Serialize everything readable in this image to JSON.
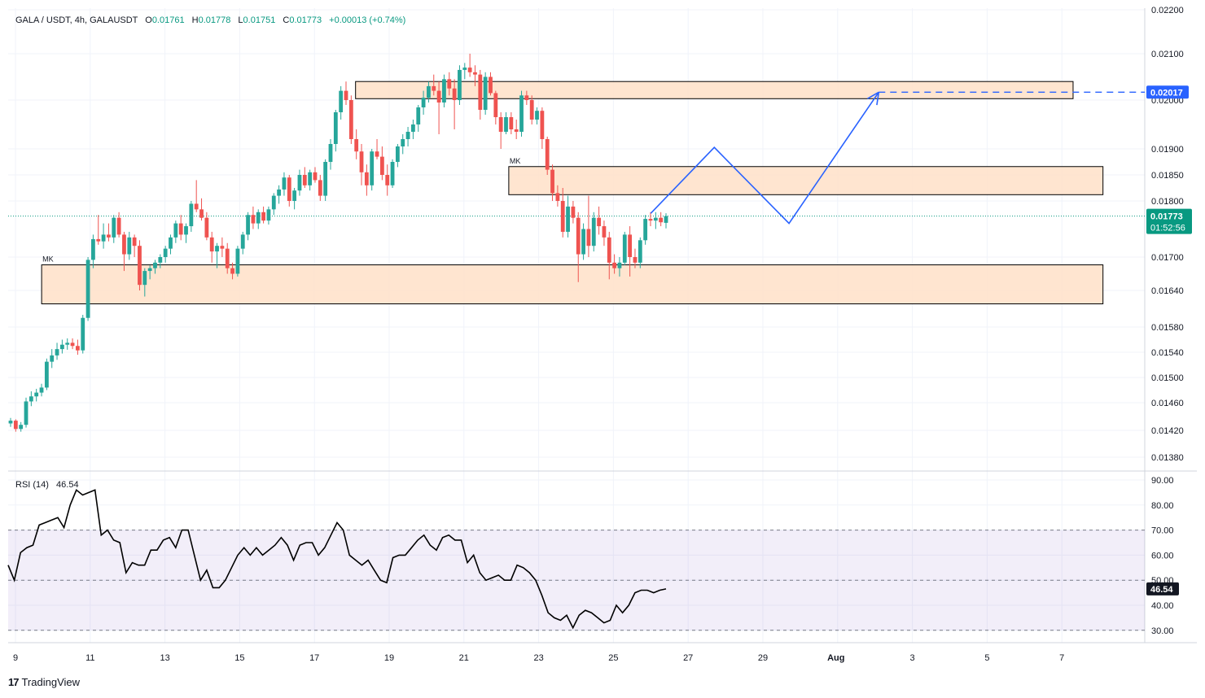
{
  "header": {
    "symbol": "GALA / USDT, 4h, GALAUSDT",
    "o_label": "O",
    "o_value": "0.01761",
    "h_label": "H",
    "h_value": "0.01778",
    "l_label": "L",
    "l_value": "0.01751",
    "c_label": "C",
    "c_value": "0.01773",
    "change": "+0.00013 (+0.74%)"
  },
  "price_tag": {
    "value": "0.01773",
    "countdown": "01:52:56"
  },
  "target_tag": "0.02017",
  "rsi_label": {
    "name": "RSI (14)",
    "value": "46.54"
  },
  "zone_labels": [
    "MK",
    "MK"
  ],
  "brand": {
    "logo": "17",
    "name": "TradingView"
  },
  "colors": {
    "up": "#26a69a",
    "down": "#ef5350",
    "zone_fill": "#ffe0c8",
    "projection": "#2962ff",
    "rsi_band": "#7e57c2",
    "rsi_line": "#000000"
  },
  "chart_data": [
    {
      "type": "candlestick",
      "title": "GALA / USDT, 4h, GALAUSDT",
      "x_ticks": [
        "9",
        "11",
        "13",
        "15",
        "17",
        "19",
        "21",
        "23",
        "25",
        "27",
        "29",
        "Aug",
        "3",
        "5",
        "7"
      ],
      "y_ticks": [
        "0.02200",
        "0.02100",
        "0.02000",
        "0.01900",
        "0.01850",
        "0.01800",
        "0.01700",
        "0.01640",
        "0.01580",
        "0.01540",
        "0.01500",
        "0.01460",
        "0.01420",
        "0.01380"
      ],
      "last_close": 0.01773,
      "zones": [
        {
          "label": "",
          "from_day": 18.1,
          "to_day": 37.3,
          "low": 0.02003,
          "high": 0.0204
        },
        {
          "label": "MK",
          "from_day": 22.2,
          "to_day": 38.1,
          "low": 0.01812,
          "high": 0.01866
        },
        {
          "label": "MK",
          "from_day": 9.7,
          "to_day": 38.1,
          "low": 0.01618,
          "high": 0.01686
        }
      ],
      "projection": [
        {
          "day": 26.0,
          "price": 0.01778
        },
        {
          "day": 27.7,
          "price": 0.01903
        },
        {
          "day": 29.7,
          "price": 0.0176
        },
        {
          "day": 32.1,
          "price": 0.02017
        }
      ],
      "target": {
        "from_day": 32.1,
        "price": 0.02017
      },
      "candles": [
        [
          0.0143,
          0.01438,
          0.01425,
          0.01434
        ],
        [
          0.01434,
          0.01436,
          0.01418,
          0.01422
        ],
        [
          0.01422,
          0.01432,
          0.01418,
          0.01428
        ],
        [
          0.01428,
          0.01468,
          0.01424,
          0.01462
        ],
        [
          0.01462,
          0.01478,
          0.01455,
          0.0147
        ],
        [
          0.0147,
          0.01482,
          0.01462,
          0.01476
        ],
        [
          0.01476,
          0.0149,
          0.0147,
          0.01484
        ],
        [
          0.01484,
          0.0153,
          0.0148,
          0.01525
        ],
        [
          0.01525,
          0.01545,
          0.01515,
          0.01535
        ],
        [
          0.01535,
          0.01555,
          0.01528,
          0.01545
        ],
        [
          0.01545,
          0.0156,
          0.01538,
          0.01552
        ],
        [
          0.01552,
          0.01562,
          0.01544,
          0.01555
        ],
        [
          0.01555,
          0.01562,
          0.01545,
          0.0155
        ],
        [
          0.0155,
          0.0156,
          0.01536,
          0.01543
        ],
        [
          0.01543,
          0.016,
          0.01538,
          0.01595
        ],
        [
          0.01595,
          0.017,
          0.0159,
          0.01695
        ],
        [
          0.01695,
          0.0174,
          0.0168,
          0.01732
        ],
        [
          0.01732,
          0.01775,
          0.01722,
          0.01728
        ],
        [
          0.01728,
          0.0176,
          0.01715,
          0.0174
        ],
        [
          0.0174,
          0.0176,
          0.01728,
          0.01735
        ],
        [
          0.01735,
          0.01775,
          0.01725,
          0.0177
        ],
        [
          0.0177,
          0.0178,
          0.01735,
          0.0174
        ],
        [
          0.0174,
          0.01745,
          0.01675,
          0.01705
        ],
        [
          0.01705,
          0.01745,
          0.01695,
          0.01735
        ],
        [
          0.01735,
          0.0174,
          0.017,
          0.0172
        ],
        [
          0.0172,
          0.0173,
          0.0164,
          0.0165
        ],
        [
          0.0165,
          0.0168,
          0.0163,
          0.01675
        ],
        [
          0.01675,
          0.01685,
          0.0166,
          0.0168
        ],
        [
          0.0168,
          0.01695,
          0.0167,
          0.0169
        ],
        [
          0.0169,
          0.01705,
          0.0168,
          0.017
        ],
        [
          0.017,
          0.0172,
          0.0169,
          0.01715
        ],
        [
          0.01715,
          0.0174,
          0.01705,
          0.01735
        ],
        [
          0.01735,
          0.01765,
          0.01725,
          0.0176
        ],
        [
          0.0176,
          0.01775,
          0.0173,
          0.0174
        ],
        [
          0.0174,
          0.0176,
          0.01725,
          0.01755
        ],
        [
          0.01755,
          0.018,
          0.01745,
          0.01795
        ],
        [
          0.01795,
          0.0184,
          0.0178,
          0.01785
        ],
        [
          0.01785,
          0.01805,
          0.01765,
          0.0177
        ],
        [
          0.0177,
          0.0178,
          0.0173,
          0.01735
        ],
        [
          0.01735,
          0.01745,
          0.0169,
          0.0171
        ],
        [
          0.0171,
          0.01725,
          0.0168,
          0.0172
        ],
        [
          0.0172,
          0.01735,
          0.017,
          0.01715
        ],
        [
          0.01715,
          0.01725,
          0.0167,
          0.0168
        ],
        [
          0.0168,
          0.0169,
          0.0166,
          0.0167
        ],
        [
          0.0167,
          0.0172,
          0.01665,
          0.01715
        ],
        [
          0.01715,
          0.01745,
          0.01705,
          0.0174
        ],
        [
          0.0174,
          0.0178,
          0.0173,
          0.01775
        ],
        [
          0.01775,
          0.0179,
          0.0175,
          0.0176
        ],
        [
          0.0176,
          0.01785,
          0.0175,
          0.0178
        ],
        [
          0.0178,
          0.0179,
          0.0176,
          0.01765
        ],
        [
          0.01765,
          0.0179,
          0.01758,
          0.01785
        ],
        [
          0.01785,
          0.01815,
          0.01775,
          0.0181
        ],
        [
          0.0181,
          0.0183,
          0.01795,
          0.01822
        ],
        [
          0.01822,
          0.01855,
          0.0181,
          0.01845
        ],
        [
          0.01845,
          0.0185,
          0.0179,
          0.018
        ],
        [
          0.018,
          0.01825,
          0.01785,
          0.0182
        ],
        [
          0.0182,
          0.0186,
          0.0181,
          0.0185
        ],
        [
          0.0185,
          0.01865,
          0.01825,
          0.0183
        ],
        [
          0.0183,
          0.0186,
          0.0182,
          0.01855
        ],
        [
          0.01855,
          0.01865,
          0.01835,
          0.0184
        ],
        [
          0.0184,
          0.0185,
          0.018,
          0.0181
        ],
        [
          0.0181,
          0.0188,
          0.018,
          0.01875
        ],
        [
          0.01875,
          0.0192,
          0.0186,
          0.0191
        ],
        [
          0.0191,
          0.0198,
          0.01895,
          0.01975
        ],
        [
          0.01975,
          0.0203,
          0.0196,
          0.0202
        ],
        [
          0.0202,
          0.0204,
          0.0199,
          0.02
        ],
        [
          0.02,
          0.0201,
          0.0191,
          0.0192
        ],
        [
          0.0192,
          0.0194,
          0.0188,
          0.01895
        ],
        [
          0.01895,
          0.0191,
          0.0183,
          0.01855
        ],
        [
          0.01855,
          0.0187,
          0.0181,
          0.0183
        ],
        [
          0.0183,
          0.019,
          0.0182,
          0.01895
        ],
        [
          0.01895,
          0.0192,
          0.0188,
          0.01885
        ],
        [
          0.01885,
          0.01905,
          0.0184,
          0.0185
        ],
        [
          0.0185,
          0.0187,
          0.0181,
          0.0183
        ],
        [
          0.0183,
          0.0188,
          0.01825,
          0.01875
        ],
        [
          0.01875,
          0.0191,
          0.01865,
          0.01905
        ],
        [
          0.01905,
          0.0193,
          0.0189,
          0.0192
        ],
        [
          0.0192,
          0.01945,
          0.01905,
          0.01935
        ],
        [
          0.01935,
          0.0196,
          0.0192,
          0.0195
        ],
        [
          0.0195,
          0.0199,
          0.01935,
          0.01985
        ],
        [
          0.01985,
          0.0202,
          0.0197,
          0.02005
        ],
        [
          0.02005,
          0.0204,
          0.01995,
          0.0203
        ],
        [
          0.0203,
          0.02055,
          0.0201,
          0.0202
        ],
        [
          0.0202,
          0.0204,
          0.0193,
          0.01995
        ],
        [
          0.01995,
          0.02055,
          0.01985,
          0.02045
        ],
        [
          0.02045,
          0.0206,
          0.0201,
          0.02025
        ],
        [
          0.02025,
          0.02045,
          0.0194,
          0.02
        ],
        [
          0.02,
          0.02075,
          0.0199,
          0.02065
        ],
        [
          0.02065,
          0.0208,
          0.02045,
          0.0207
        ],
        [
          0.0207,
          0.021,
          0.0205,
          0.0206
        ],
        [
          0.0206,
          0.02075,
          0.0203,
          0.02055
        ],
        [
          0.02055,
          0.02065,
          0.0196,
          0.0198
        ],
        [
          0.0198,
          0.0206,
          0.0197,
          0.0205
        ],
        [
          0.0205,
          0.0206,
          0.0201,
          0.02015
        ],
        [
          0.02015,
          0.0202,
          0.0195,
          0.01965
        ],
        [
          0.01965,
          0.01975,
          0.019,
          0.01935
        ],
        [
          0.01935,
          0.01975,
          0.0193,
          0.01965
        ],
        [
          0.01965,
          0.01975,
          0.0193,
          0.0194
        ],
        [
          0.0194,
          0.0196,
          0.0192,
          0.01935
        ],
        [
          0.01935,
          0.0202,
          0.01925,
          0.0201
        ],
        [
          0.0201,
          0.0202,
          0.0199,
          0.02
        ],
        [
          0.02,
          0.0201,
          0.0195,
          0.0196
        ],
        [
          0.0196,
          0.01985,
          0.0195,
          0.01978
        ],
        [
          0.01978,
          0.01985,
          0.019,
          0.0192
        ],
        [
          0.0192,
          0.01925,
          0.0185,
          0.0186
        ],
        [
          0.0186,
          0.0187,
          0.018,
          0.01815
        ],
        [
          0.01815,
          0.0183,
          0.0179,
          0.018
        ],
        [
          0.018,
          0.01825,
          0.01735,
          0.01745
        ],
        [
          0.01745,
          0.0181,
          0.01735,
          0.0179
        ],
        [
          0.0179,
          0.018,
          0.0176,
          0.0177
        ],
        [
          0.0177,
          0.0178,
          0.01655,
          0.01705
        ],
        [
          0.01705,
          0.0176,
          0.01695,
          0.0175
        ],
        [
          0.0175,
          0.0181,
          0.017,
          0.0172
        ],
        [
          0.0172,
          0.0178,
          0.0171,
          0.0177
        ],
        [
          0.0177,
          0.0179,
          0.0174,
          0.01755
        ],
        [
          0.01755,
          0.01765,
          0.0172,
          0.01735
        ],
        [
          0.01735,
          0.01745,
          0.0166,
          0.0169
        ],
        [
          0.0169,
          0.01705,
          0.0167,
          0.0168
        ],
        [
          0.0168,
          0.017,
          0.01665,
          0.0169
        ],
        [
          0.0169,
          0.01745,
          0.01685,
          0.0174
        ],
        [
          0.0174,
          0.01755,
          0.01665,
          0.017
        ],
        [
          0.017,
          0.01715,
          0.0168,
          0.0169
        ],
        [
          0.0169,
          0.01735,
          0.0168,
          0.0173
        ],
        [
          0.0173,
          0.01775,
          0.01722,
          0.01768
        ],
        [
          0.01768,
          0.0178,
          0.01755,
          0.01765
        ],
        [
          0.01765,
          0.0178,
          0.0175,
          0.0177
        ],
        [
          0.0177,
          0.0178,
          0.01755,
          0.01762
        ],
        [
          0.01761,
          0.01778,
          0.01751,
          0.01773
        ]
      ]
    },
    {
      "type": "line",
      "title": "RSI (14)",
      "y_ticks": [
        "90.00",
        "80.00",
        "70.00",
        "60.00",
        "50.00",
        "40.00",
        "30.00"
      ],
      "ylim": [
        28,
        92
      ],
      "band": [
        30,
        70
      ],
      "midline": 50,
      "last_value": 46.54,
      "values": [
        56,
        50,
        61,
        63,
        64,
        72,
        73,
        74,
        75,
        71,
        80,
        86,
        84,
        85,
        86,
        68,
        70,
        66,
        65,
        53,
        57,
        56,
        56,
        62,
        62,
        66,
        67,
        63,
        70,
        70,
        60,
        50,
        54,
        47,
        47,
        50,
        55,
        60,
        63,
        60,
        63,
        60,
        62,
        64,
        67,
        64,
        58,
        64,
        65,
        65,
        60,
        63,
        68,
        73,
        70,
        60,
        58,
        56,
        58,
        54,
        50,
        49,
        59,
        60,
        60,
        63,
        66,
        68,
        64,
        62,
        67,
        68,
        66,
        66,
        57,
        60,
        53,
        50,
        51,
        52,
        50,
        50,
        56,
        55,
        53,
        50,
        44,
        37,
        35,
        34,
        36,
        31,
        36,
        38,
        37,
        35,
        33,
        34,
        40,
        37,
        40,
        45,
        46,
        46,
        45,
        46,
        46.54
      ]
    }
  ]
}
